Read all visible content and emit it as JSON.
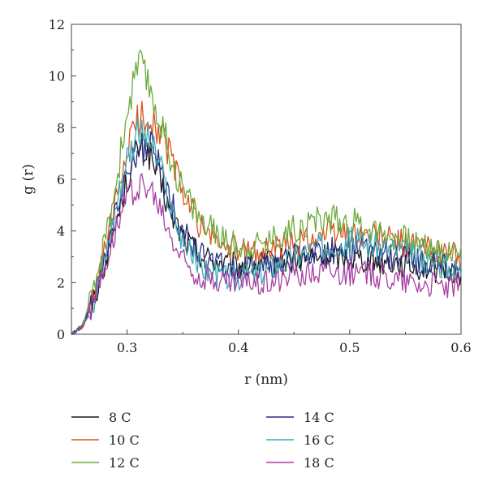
{
  "chart_data": {
    "type": "line",
    "title": "",
    "xlabel": "r (nm)",
    "ylabel": "g (r)",
    "xlim": [
      0.25,
      0.6
    ],
    "ylim": [
      0,
      12
    ],
    "xticks": [
      0.3,
      0.4,
      0.5,
      0.6
    ],
    "xtick_labels": [
      "0.3",
      "0.4",
      "0.5",
      "0.6"
    ],
    "yticks": [
      0,
      2,
      4,
      6,
      8,
      10,
      12
    ],
    "ytick_labels": [
      "0",
      "2",
      "4",
      "6",
      "8",
      "10",
      "12"
    ],
    "grid": false,
    "legend_position": "bottom",
    "x": [
      0.25,
      0.26,
      0.27,
      0.28,
      0.29,
      0.3,
      0.31,
      0.32,
      0.33,
      0.34,
      0.35,
      0.36,
      0.37,
      0.38,
      0.39,
      0.4,
      0.42,
      0.44,
      0.46,
      0.48,
      0.5,
      0.52,
      0.54,
      0.56,
      0.58,
      0.6
    ],
    "series": [
      {
        "name": "8 C",
        "color": "#1a1a1a",
        "values": [
          0,
          0.3,
          1.3,
          2.8,
          4.3,
          6.0,
          7.2,
          7.0,
          5.8,
          4.6,
          3.8,
          3.3,
          3.0,
          2.8,
          2.7,
          2.6,
          2.7,
          2.8,
          2.9,
          3.0,
          3.0,
          2.9,
          2.8,
          2.6,
          2.5,
          2.4
        ]
      },
      {
        "name": "10 C",
        "color": "#d9531e",
        "values": [
          0,
          0.3,
          1.4,
          3.2,
          5.0,
          7.2,
          8.3,
          8.5,
          7.8,
          6.8,
          5.5,
          4.6,
          4.0,
          3.6,
          3.4,
          3.2,
          3.2,
          3.4,
          3.7,
          3.9,
          3.9,
          3.8,
          3.6,
          3.4,
          3.2,
          3.1
        ]
      },
      {
        "name": "12 C",
        "color": "#6aab3c",
        "values": [
          0,
          0.4,
          1.6,
          3.6,
          5.8,
          8.6,
          10.5,
          9.6,
          8.2,
          6.8,
          5.6,
          4.9,
          4.2,
          3.9,
          3.6,
          3.4,
          3.5,
          3.9,
          4.3,
          4.5,
          4.4,
          4.1,
          3.8,
          3.5,
          3.3,
          3.1
        ]
      },
      {
        "name": "14 C",
        "color": "#2b2e82",
        "values": [
          0,
          0.3,
          1.3,
          3.0,
          4.6,
          6.2,
          7.0,
          7.3,
          6.4,
          5.0,
          4.0,
          3.3,
          2.9,
          2.7,
          2.6,
          2.5,
          2.6,
          2.8,
          3.1,
          3.2,
          3.3,
          3.2,
          3.0,
          2.8,
          2.6,
          2.5
        ]
      },
      {
        "name": "16 C",
        "color": "#3fa9b5",
        "values": [
          0,
          0.3,
          1.3,
          3.0,
          5.0,
          7.0,
          7.8,
          7.6,
          6.4,
          4.8,
          3.6,
          2.9,
          2.5,
          2.3,
          2.2,
          2.2,
          2.4,
          2.8,
          3.2,
          3.5,
          3.6,
          3.5,
          3.3,
          3.0,
          2.7,
          2.5
        ]
      },
      {
        "name": "18 C",
        "color": "#a63fa3",
        "values": [
          0,
          0.3,
          1.2,
          2.7,
          4.2,
          5.3,
          5.8,
          5.6,
          4.8,
          3.7,
          2.9,
          2.4,
          2.2,
          2.1,
          2.0,
          2.0,
          2.0,
          2.2,
          2.4,
          2.5,
          2.4,
          2.3,
          2.2,
          2.0,
          1.9,
          1.8
        ]
      }
    ]
  }
}
